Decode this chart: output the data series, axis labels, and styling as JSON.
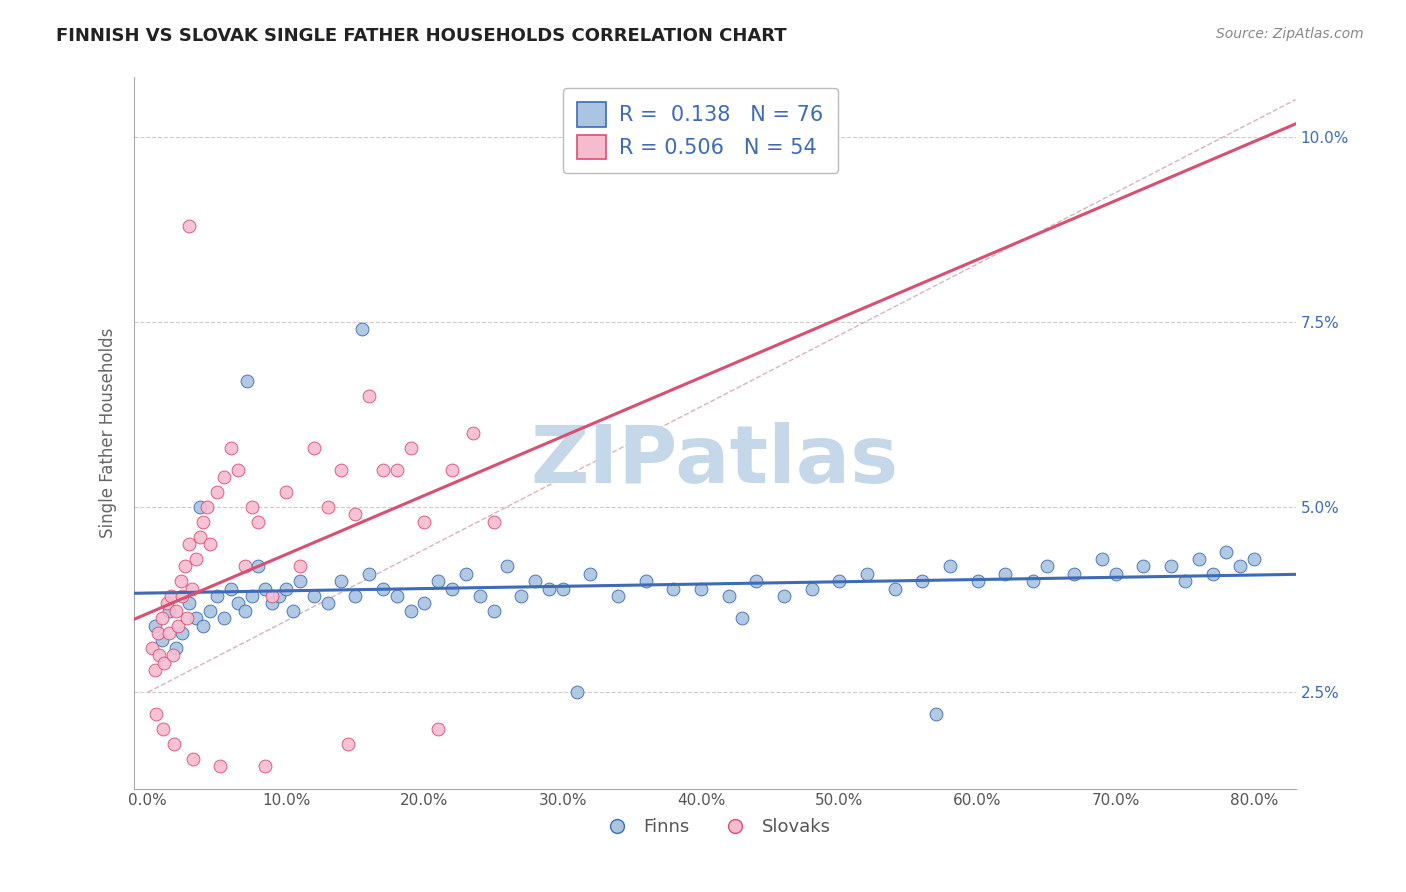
{
  "title": "FINNISH VS SLOVAK SINGLE FATHER HOUSEHOLDS CORRELATION CHART",
  "source": "Source: ZipAtlas.com",
  "ylabel": "Single Father Households",
  "xlabel_ticks": [
    "0.0%",
    "10.0%",
    "20.0%",
    "30.0%",
    "40.0%",
    "50.0%",
    "60.0%",
    "70.0%",
    "80.0%"
  ],
  "xlabel_vals": [
    0.0,
    10.0,
    20.0,
    30.0,
    40.0,
    50.0,
    60.0,
    70.0,
    80.0
  ],
  "ytick_vals": [
    2.5,
    5.0,
    7.5,
    10.0
  ],
  "ytick_labels": [
    "2.5%",
    "5.0%",
    "7.5%",
    "10.0%"
  ],
  "ylim": [
    1.2,
    10.8
  ],
  "xlim": [
    -1.0,
    83.0
  ],
  "finn_color": "#aac4e2",
  "slovak_color": "#f5bcd0",
  "finn_line_color": "#3d6bb5",
  "slovak_line_color": "#d94f72",
  "ref_line_color": "#d0a0a8",
  "legend_finn_r": "R =  0.138",
  "legend_finn_n": "N = 76",
  "legend_slovak_r": "R = 0.506",
  "legend_slovak_n": "N = 54",
  "watermark": "ZIPatlas",
  "watermark_color": "#c5d8ea",
  "finn_scatter_x": [
    0.5,
    1.0,
    1.5,
    2.0,
    2.5,
    3.0,
    3.5,
    4.0,
    4.5,
    5.0,
    5.5,
    6.0,
    6.5,
    7.0,
    7.5,
    8.0,
    8.5,
    9.0,
    9.5,
    10.0,
    10.5,
    11.0,
    12.0,
    13.0,
    14.0,
    15.0,
    16.0,
    17.0,
    18.0,
    19.0,
    20.0,
    21.0,
    22.0,
    23.0,
    24.0,
    25.0,
    26.0,
    27.0,
    28.0,
    29.0,
    30.0,
    32.0,
    34.0,
    36.0,
    38.0,
    40.0,
    42.0,
    44.0,
    46.0,
    48.0,
    50.0,
    52.0,
    54.0,
    56.0,
    58.0,
    60.0,
    62.0,
    64.0,
    65.0,
    67.0,
    69.0,
    70.0,
    72.0,
    74.0,
    75.0,
    76.0,
    77.0,
    78.0,
    79.0,
    80.0,
    3.8,
    7.2,
    15.5,
    31.0,
    43.0,
    57.0
  ],
  "finn_scatter_y": [
    3.4,
    3.2,
    3.6,
    3.1,
    3.3,
    3.7,
    3.5,
    3.4,
    3.6,
    3.8,
    3.5,
    3.9,
    3.7,
    3.6,
    3.8,
    4.2,
    3.9,
    3.7,
    3.8,
    3.9,
    3.6,
    4.0,
    3.8,
    3.7,
    4.0,
    3.8,
    4.1,
    3.9,
    3.8,
    3.6,
    3.7,
    4.0,
    3.9,
    4.1,
    3.8,
    3.6,
    4.2,
    3.8,
    4.0,
    3.9,
    3.9,
    4.1,
    3.8,
    4.0,
    3.9,
    3.9,
    3.8,
    4.0,
    3.8,
    3.9,
    4.0,
    4.1,
    3.9,
    4.0,
    4.2,
    4.0,
    4.1,
    4.0,
    4.2,
    4.1,
    4.3,
    4.1,
    4.2,
    4.2,
    4.0,
    4.3,
    4.1,
    4.4,
    4.2,
    4.3,
    5.0,
    6.7,
    7.4,
    2.5,
    3.5,
    2.2
  ],
  "slovak_scatter_x": [
    0.3,
    0.5,
    0.7,
    0.8,
    1.0,
    1.2,
    1.4,
    1.5,
    1.7,
    1.8,
    2.0,
    2.2,
    2.4,
    2.5,
    2.7,
    2.8,
    3.0,
    3.2,
    3.5,
    3.8,
    4.0,
    4.3,
    4.5,
    5.0,
    5.5,
    6.0,
    6.5,
    7.0,
    7.5,
    8.0,
    9.0,
    10.0,
    11.0,
    12.0,
    13.0,
    14.0,
    15.0,
    16.0,
    17.0,
    18.0,
    19.0,
    20.0,
    22.0,
    23.5,
    25.0,
    0.6,
    1.1,
    1.9,
    3.3,
    5.2,
    8.5,
    14.5,
    21.0,
    3.0
  ],
  "slovak_scatter_y": [
    3.1,
    2.8,
    3.3,
    3.0,
    3.5,
    2.9,
    3.7,
    3.3,
    3.8,
    3.0,
    3.6,
    3.4,
    4.0,
    3.8,
    4.2,
    3.5,
    4.5,
    3.9,
    4.3,
    4.6,
    4.8,
    5.0,
    4.5,
    5.2,
    5.4,
    5.8,
    5.5,
    4.2,
    5.0,
    4.8,
    3.8,
    5.2,
    4.2,
    5.8,
    5.0,
    5.5,
    4.9,
    6.5,
    5.5,
    5.5,
    5.8,
    4.8,
    5.5,
    6.0,
    4.8,
    2.2,
    2.0,
    1.8,
    1.6,
    1.5,
    1.5,
    1.8,
    2.0,
    8.8
  ]
}
